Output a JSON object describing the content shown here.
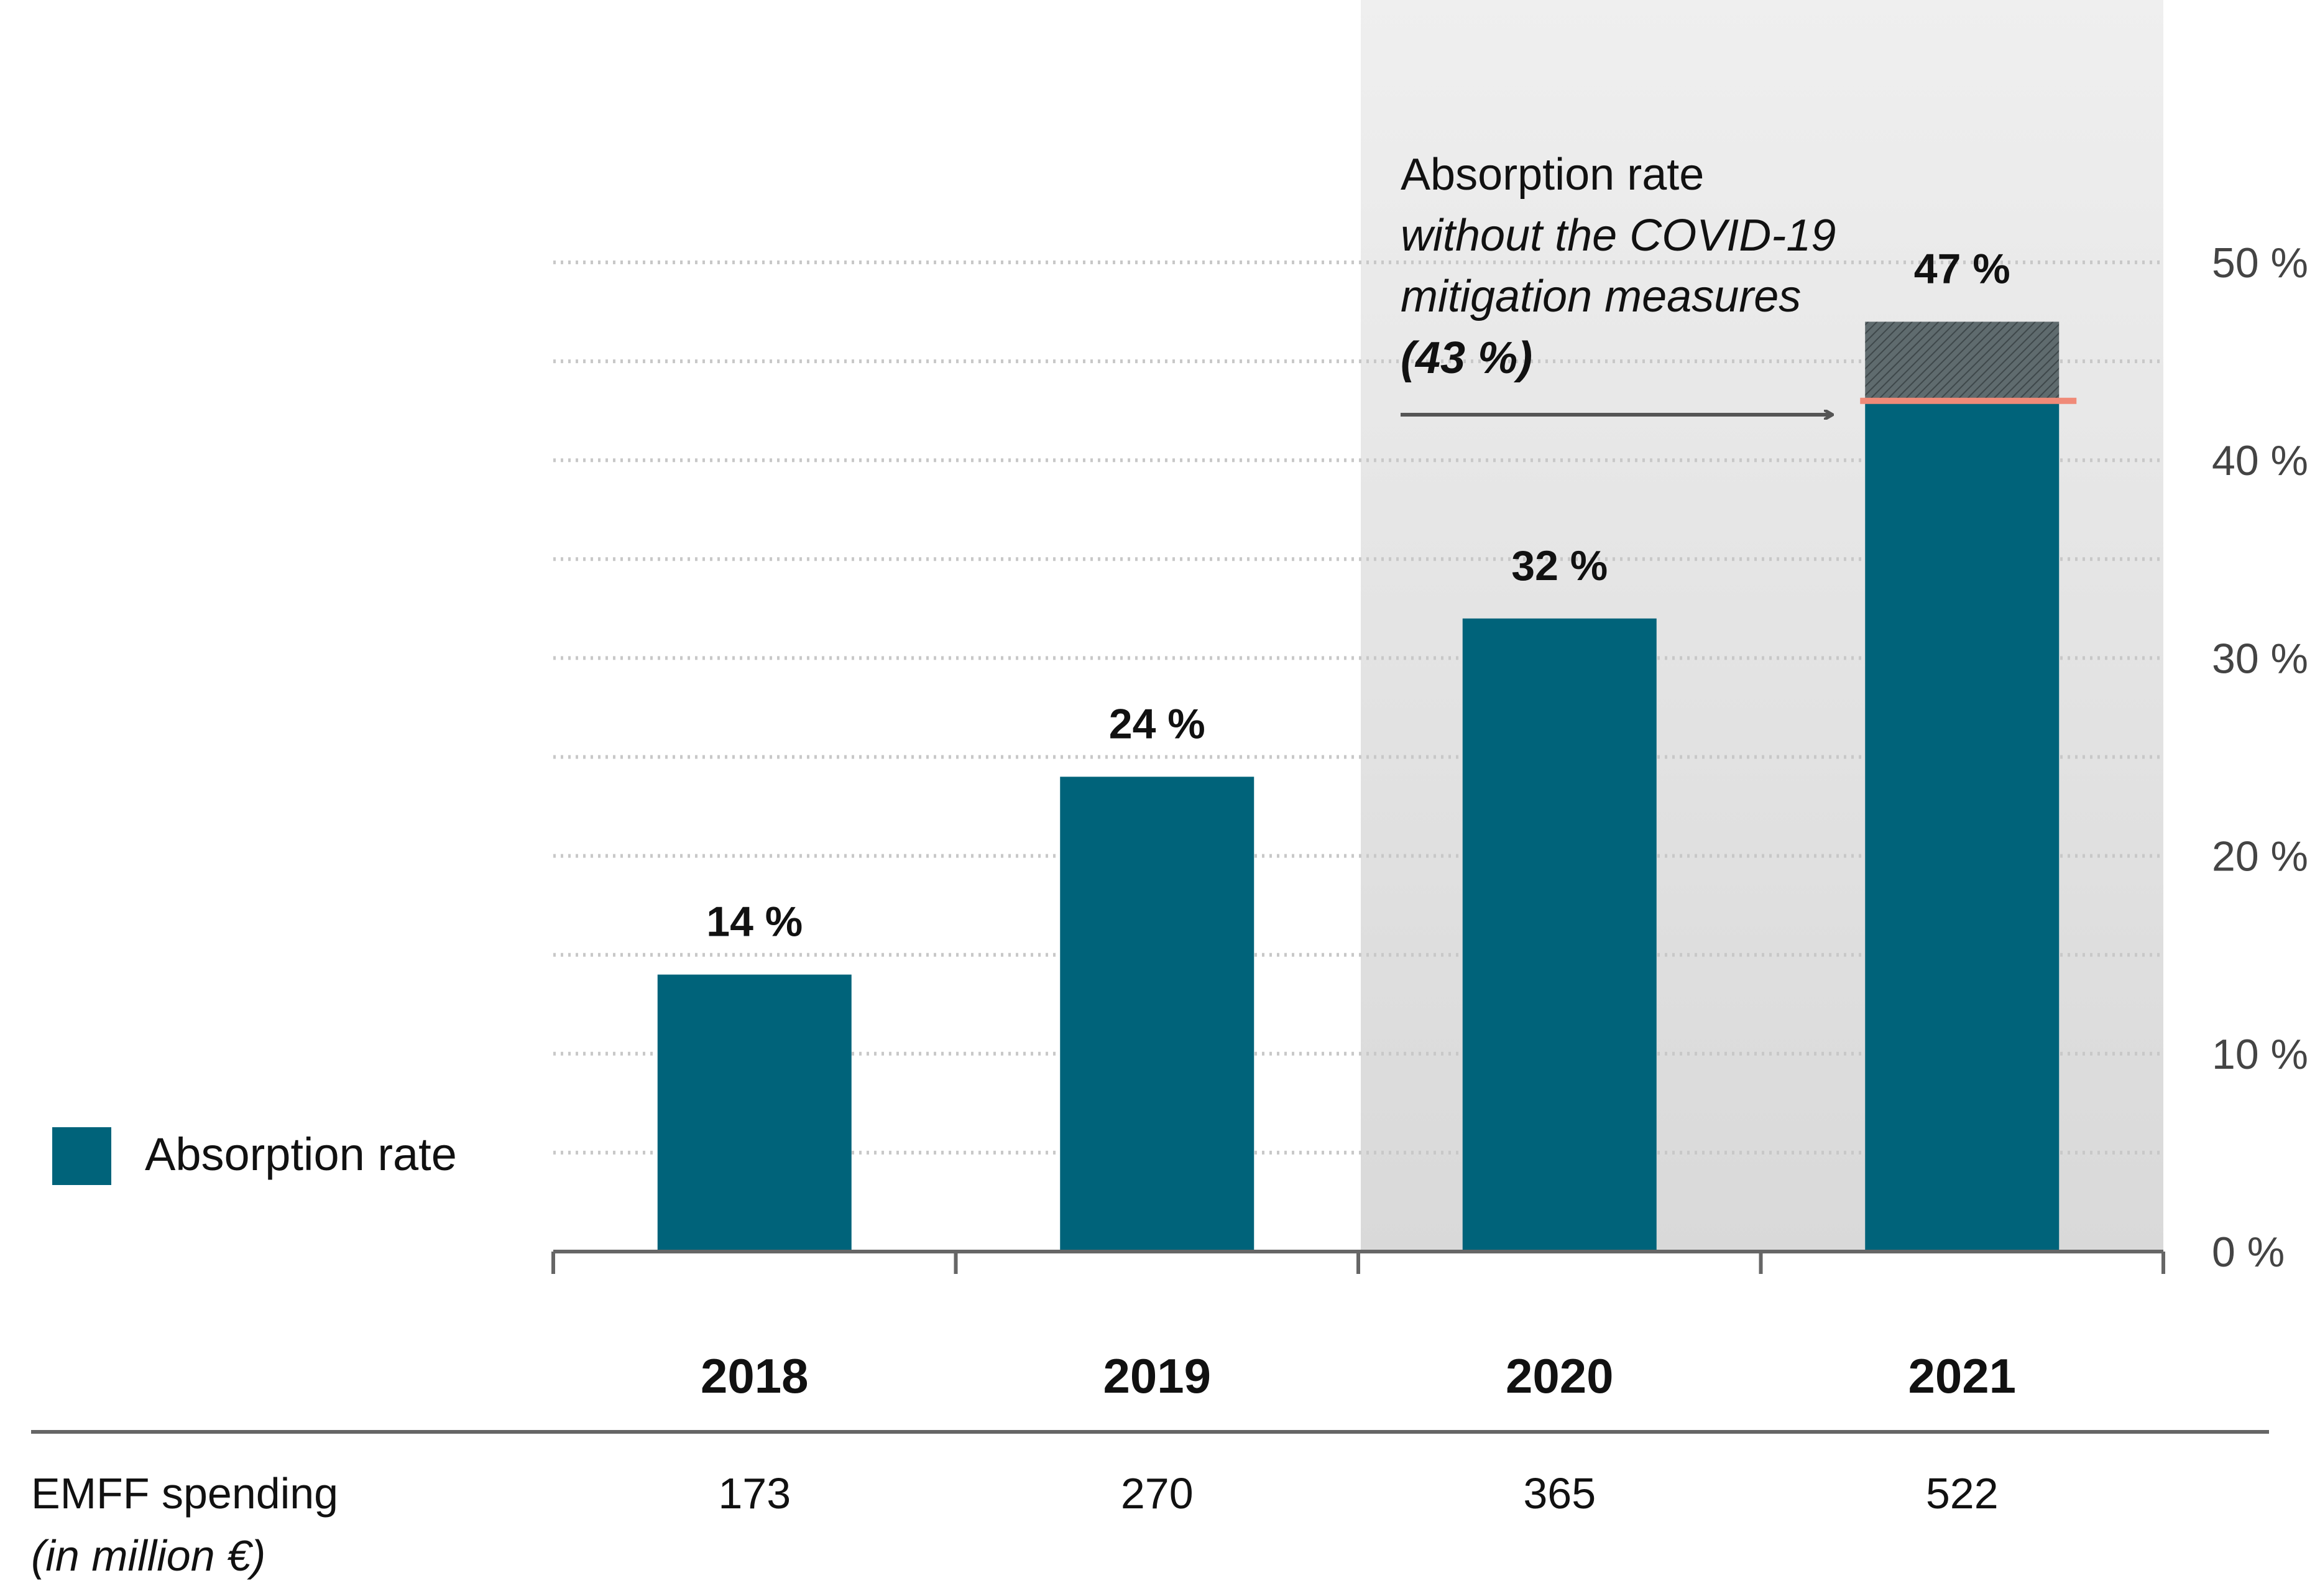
{
  "chart_data": {
    "type": "bar",
    "categories": [
      "2018",
      "2019",
      "2020",
      "2021"
    ],
    "series": [
      {
        "name": "Absorption rate",
        "values": [
          14,
          24,
          32,
          47
        ]
      }
    ],
    "data_labels": [
      "14 %",
      "24 %",
      "32 %",
      "47 %"
    ],
    "without_covid_measures_value": 43,
    "y_axis": {
      "position": "right",
      "range": [
        0,
        50
      ],
      "ticks": [
        0,
        10,
        20,
        30,
        40,
        50
      ],
      "tick_labels": [
        "0 %",
        "10 %",
        "20 %",
        "30 %",
        "40 %",
        "50 %"
      ]
    },
    "grid": "dotted horizontal",
    "highlighted_categories": [
      "2020",
      "2021"
    ],
    "legend": {
      "label": "Absorption rate",
      "placement": "left"
    },
    "annotation": {
      "line1": "Absorption rate",
      "line2": "without the COVID-19",
      "line3": "mitigation measures",
      "line4": "(43 %)"
    },
    "table": {
      "row_label": "EMFF spending",
      "row_sublabel": "(in million €)",
      "values": [
        "173",
        "270",
        "365",
        "522"
      ]
    }
  },
  "colors": {
    "bar": "#00637A",
    "highlight_band": "#E4E4E4",
    "hatch": "#555E60",
    "covid_line": "#F08A78",
    "axis": "#666666",
    "grid": "#C8C8C8"
  }
}
